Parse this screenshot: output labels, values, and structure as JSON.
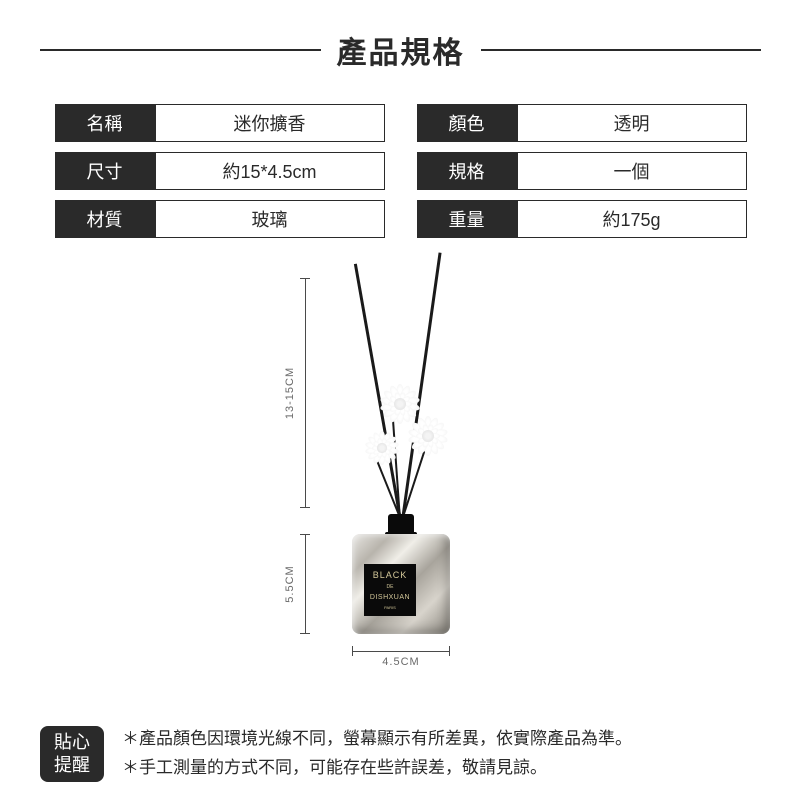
{
  "title": "產品規格",
  "specs": {
    "left": [
      {
        "label": "名稱",
        "value": "迷你擴香"
      },
      {
        "label": "尺寸",
        "value": "約15*4.5cm"
      },
      {
        "label": "材質",
        "value": "玻璃"
      }
    ],
    "right": [
      {
        "label": "顏色",
        "value": "透明"
      },
      {
        "label": "規格",
        "value": "一個"
      },
      {
        "label": "重量",
        "value": "約175g"
      }
    ]
  },
  "dimensions": {
    "height_top": "13-15CM",
    "height_bottle": "5.5CM",
    "width": "4.5CM"
  },
  "bottle_label": {
    "line1": "BLACK",
    "line2": "DE",
    "line3": "DISHXUAN",
    "line4": "PARIS"
  },
  "reminder": {
    "badge_line1": "貼心",
    "badge_line2": "提醒",
    "line1": "＊產品顏色因環境光線不同，螢幕顯示有所差異，依實際產品為準。",
    "line2": "＊手工測量的方式不同，可能存在些許誤差，敬請見諒。"
  },
  "colors": {
    "dark": "#2a2a2a",
    "white": "#ffffff",
    "dim": "#6a6a6a",
    "gold": "#d4c89a"
  }
}
